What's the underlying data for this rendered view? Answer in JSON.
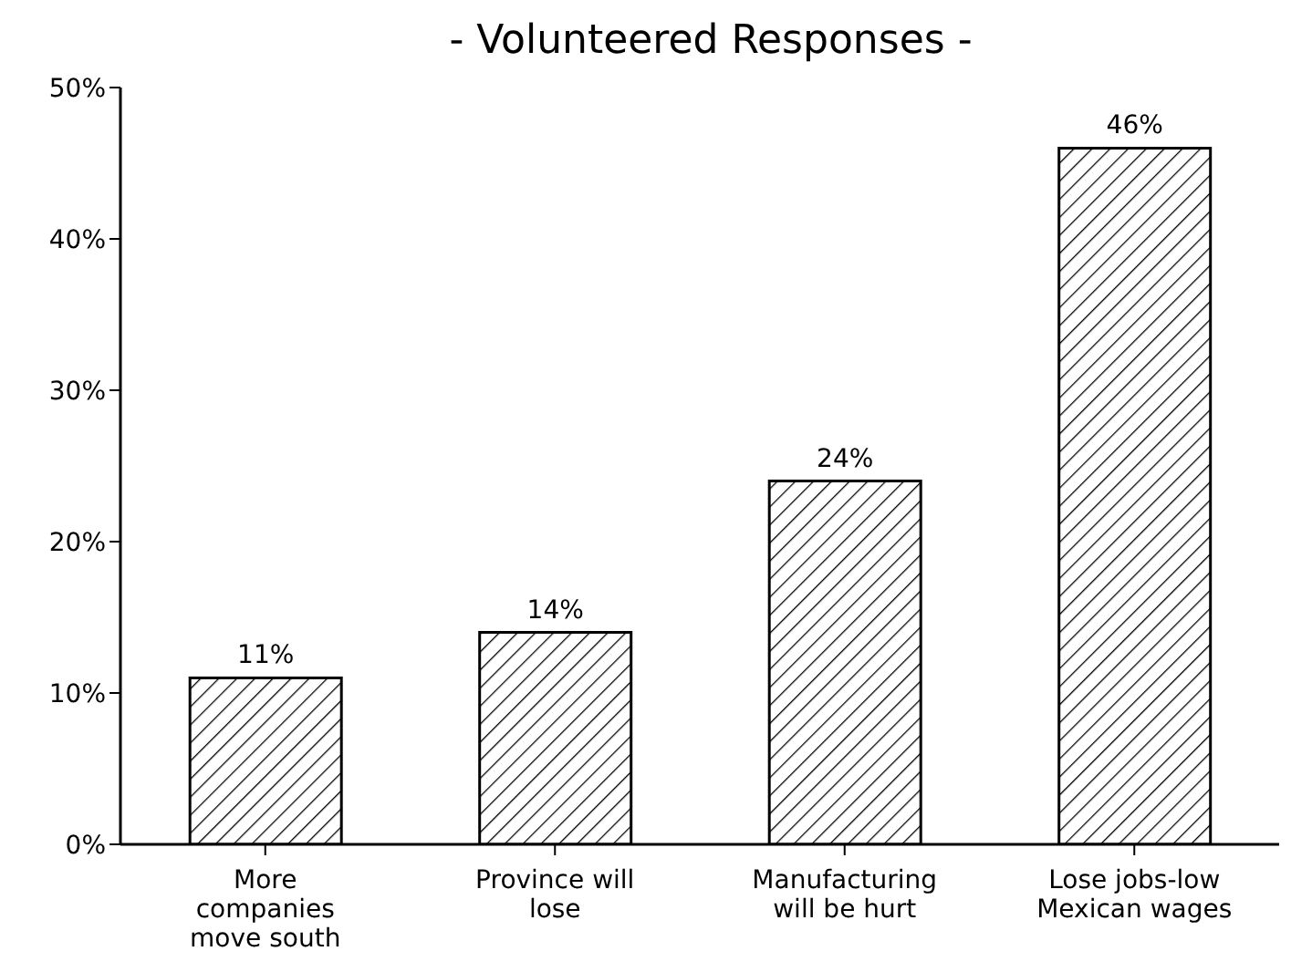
{
  "chart_data": {
    "type": "bar",
    "title": "- Volunteered Responses -",
    "categories": [
      "More\ncompanies\nmove south",
      "Province will\nlose",
      "Manufacturing\nwill be hurt",
      "Lose jobs-low\nMexican wages"
    ],
    "values": [
      11,
      14,
      24,
      46
    ],
    "value_labels": [
      "11%",
      "14%",
      "24%",
      "46%"
    ],
    "color": "#000000",
    "ylim": [
      0,
      50
    ],
    "yticks": [
      {
        "value": 0,
        "label": "0%"
      },
      {
        "value": 10,
        "label": "10%"
      },
      {
        "value": 20,
        "label": "20%"
      },
      {
        "value": 30,
        "label": "30%"
      },
      {
        "value": 40,
        "label": "40%"
      },
      {
        "value": 50,
        "label": "50%"
      }
    ],
    "grid": false
  }
}
